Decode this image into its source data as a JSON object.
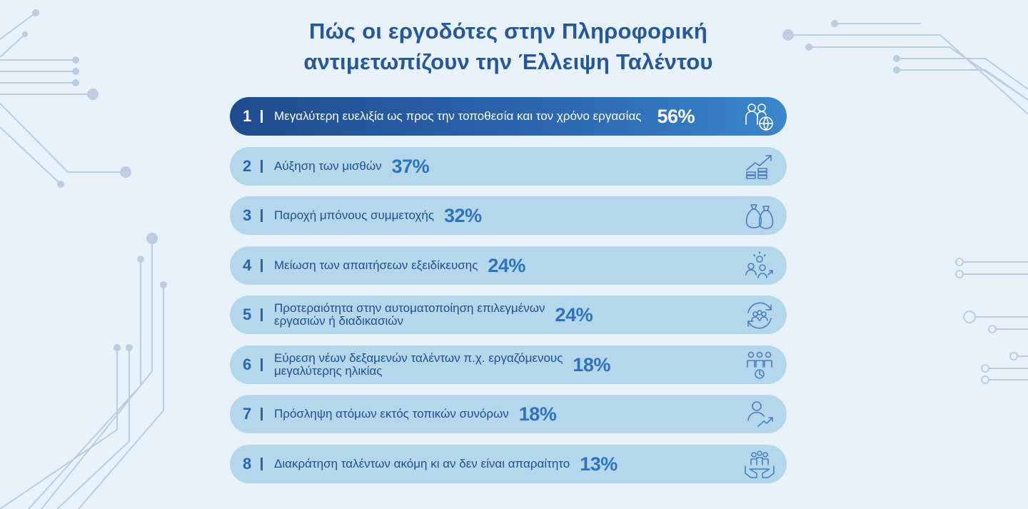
{
  "chart_data": {
    "type": "bar",
    "title_lines": [
      "Πώς οι εργοδότες στην Πληροφορική",
      "αντιμετωπίζουν την Έλλειψη Ταλέντου"
    ],
    "separator": "I",
    "items": [
      {
        "rank": "1",
        "label_lines": [
          "Μεγαλύτερη ευελιξία ως προς την τοποθεσία και τον χρόνο εργασίας"
        ],
        "value": 56,
        "value_label": "56%",
        "icon": "people-globe-icon"
      },
      {
        "rank": "2",
        "label_lines": [
          "Αύξηση των μισθών"
        ],
        "value": 37,
        "value_label": "37%",
        "icon": "salary-growth-icon"
      },
      {
        "rank": "3",
        "label_lines": [
          "Παροχή μπόνους συμμετοχής"
        ],
        "value": 32,
        "value_label": "32%",
        "icon": "money-bags-icon"
      },
      {
        "rank": "4",
        "label_lines": [
          "Μείωση των απαιτήσεων εξειδίκευσης"
        ],
        "value": 24,
        "value_label": "24%",
        "icon": "team-idea-icon"
      },
      {
        "rank": "5",
        "label_lines": [
          "Προτεραιότητα στην αυτοματοποίηση επιλεγμένων",
          "εργασιών ή διαδικασιών"
        ],
        "value": 24,
        "value_label": "24%",
        "icon": "automation-cycle-icon"
      },
      {
        "rank": "6",
        "label_lines": [
          "Εύρεση νέων δεξαμενών ταλέντων π.χ. εργαζόμενους",
          "μεγαλύτερης ηλικίας"
        ],
        "value": 18,
        "value_label": "18%",
        "icon": "talent-pool-icon"
      },
      {
        "rank": "7",
        "label_lines": [
          "Πρόσληψη ατόμων εκτός τοπικών συνόρων"
        ],
        "value": 18,
        "value_label": "18%",
        "icon": "remote-hire-icon"
      },
      {
        "rank": "8",
        "label_lines": [
          "Διακράτηση ταλέντων ακόμη κι αν δεν είναι απαραίτητο"
        ],
        "value": 13,
        "value_label": "13%",
        "icon": "talent-retention-icon"
      }
    ],
    "colors": {
      "highlight": "#2a5da3",
      "bar": "#b4d7ec",
      "accent": "#2e73c0",
      "title": "#25579a"
    }
  }
}
